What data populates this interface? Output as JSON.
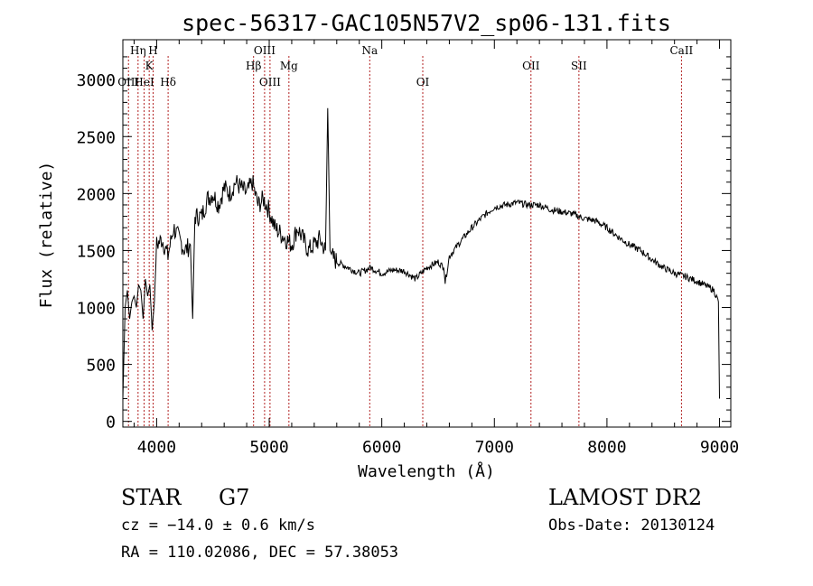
{
  "chart_data": {
    "type": "line",
    "title": "spec-56317-GAC105N57V2_sp06-131.fits",
    "xlabel": "Wavelength (Å)",
    "ylabel": "Flux (relative)",
    "xlim": [
      3700,
      9100
    ],
    "ylim": [
      -50,
      3350
    ],
    "xticks": [
      4000,
      5000,
      6000,
      7000,
      8000,
      9000
    ],
    "yticks": [
      0,
      500,
      1000,
      1500,
      2000,
      2500,
      3000
    ],
    "grid": false,
    "line_color": "#000000",
    "marker_color": "#b22222",
    "series": [
      {
        "x": [
          3700,
          3720,
          3740,
          3760,
          3780,
          3800,
          3820,
          3840,
          3860,
          3880,
          3900,
          3920,
          3940,
          3960,
          3980,
          4000,
          4050,
          4100,
          4150,
          4200,
          4250,
          4300,
          4320,
          4340,
          4400,
          4450,
          4500,
          4550,
          4600,
          4650,
          4700,
          4750,
          4800,
          4850,
          4900,
          4950,
          5000,
          5050,
          5100,
          5150,
          5200,
          5250,
          5300,
          5350,
          5400,
          5450,
          5500,
          5520,
          5540,
          5560,
          5600,
          5700,
          5800,
          5900,
          6000,
          6100,
          6200,
          6300,
          6400,
          6500,
          6550,
          6563,
          6600,
          6700,
          6800,
          6900,
          7000,
          7100,
          7200,
          7300,
          7400,
          7500,
          7600,
          7700,
          7800,
          7900,
          8000,
          8100,
          8200,
          8300,
          8400,
          8500,
          8600,
          8700,
          8800,
          8900,
          8950,
          8990,
          9000
        ],
        "y": [
          200,
          1000,
          1150,
          900,
          1050,
          1100,
          1000,
          1200,
          1150,
          900,
          1250,
          1100,
          1200,
          800,
          1050,
          1550,
          1600,
          1450,
          1700,
          1600,
          1500,
          1550,
          900,
          1800,
          1800,
          1950,
          2000,
          1900,
          2050,
          2000,
          2100,
          2050,
          2000,
          2100,
          1900,
          1950,
          1850,
          1700,
          1650,
          1600,
          1550,
          1700,
          1600,
          1500,
          1550,
          1600,
          1500,
          2750,
          1500,
          1450,
          1400,
          1350,
          1300,
          1350,
          1300,
          1330,
          1320,
          1250,
          1350,
          1400,
          1350,
          1220,
          1450,
          1580,
          1700,
          1800,
          1880,
          1900,
          1920,
          1900,
          1900,
          1860,
          1840,
          1820,
          1780,
          1760,
          1700,
          1620,
          1550,
          1500,
          1420,
          1350,
          1300,
          1270,
          1230,
          1180,
          1150,
          1050,
          200
        ]
      }
    ],
    "lines": [
      {
        "wavelength": 3750,
        "label": "OIII",
        "row": 2
      },
      {
        "wavelength": 3835,
        "label": "Hη",
        "row": 0
      },
      {
        "wavelength": 3889,
        "label": "HeI",
        "row": 2
      },
      {
        "wavelength": 3934,
        "label": "K",
        "row": 1
      },
      {
        "wavelength": 3969,
        "label": "H",
        "row": 0
      },
      {
        "wavelength": 4102,
        "label": "Hδ",
        "row": 2
      },
      {
        "wavelength": 4861,
        "label": "Hβ",
        "row": 1
      },
      {
        "wavelength": 4959,
        "label": "OIII",
        "row": 0
      },
      {
        "wavelength": 5007,
        "label": "OIII",
        "row": 2
      },
      {
        "wavelength": 5175,
        "label": "Mg",
        "row": 1
      },
      {
        "wavelength": 5893,
        "label": "Na",
        "row": 0
      },
      {
        "wavelength": 6364,
        "label": "OI",
        "row": 2
      },
      {
        "wavelength": 7325,
        "label": "OII",
        "row": 1
      },
      {
        "wavelength": 7751,
        "label": "SII",
        "row": 1
      },
      {
        "wavelength": 8662,
        "label": "CaII",
        "row": 0
      }
    ]
  },
  "info": {
    "object_class": "STAR",
    "subclass": "G7",
    "redshift": "cz = −14.0 ± 0.6 km/s",
    "coords": "RA = 110.02086, DEC =  57.38053",
    "survey": "LAMOST DR2",
    "obs_date": "Obs-Date: 20130124"
  }
}
